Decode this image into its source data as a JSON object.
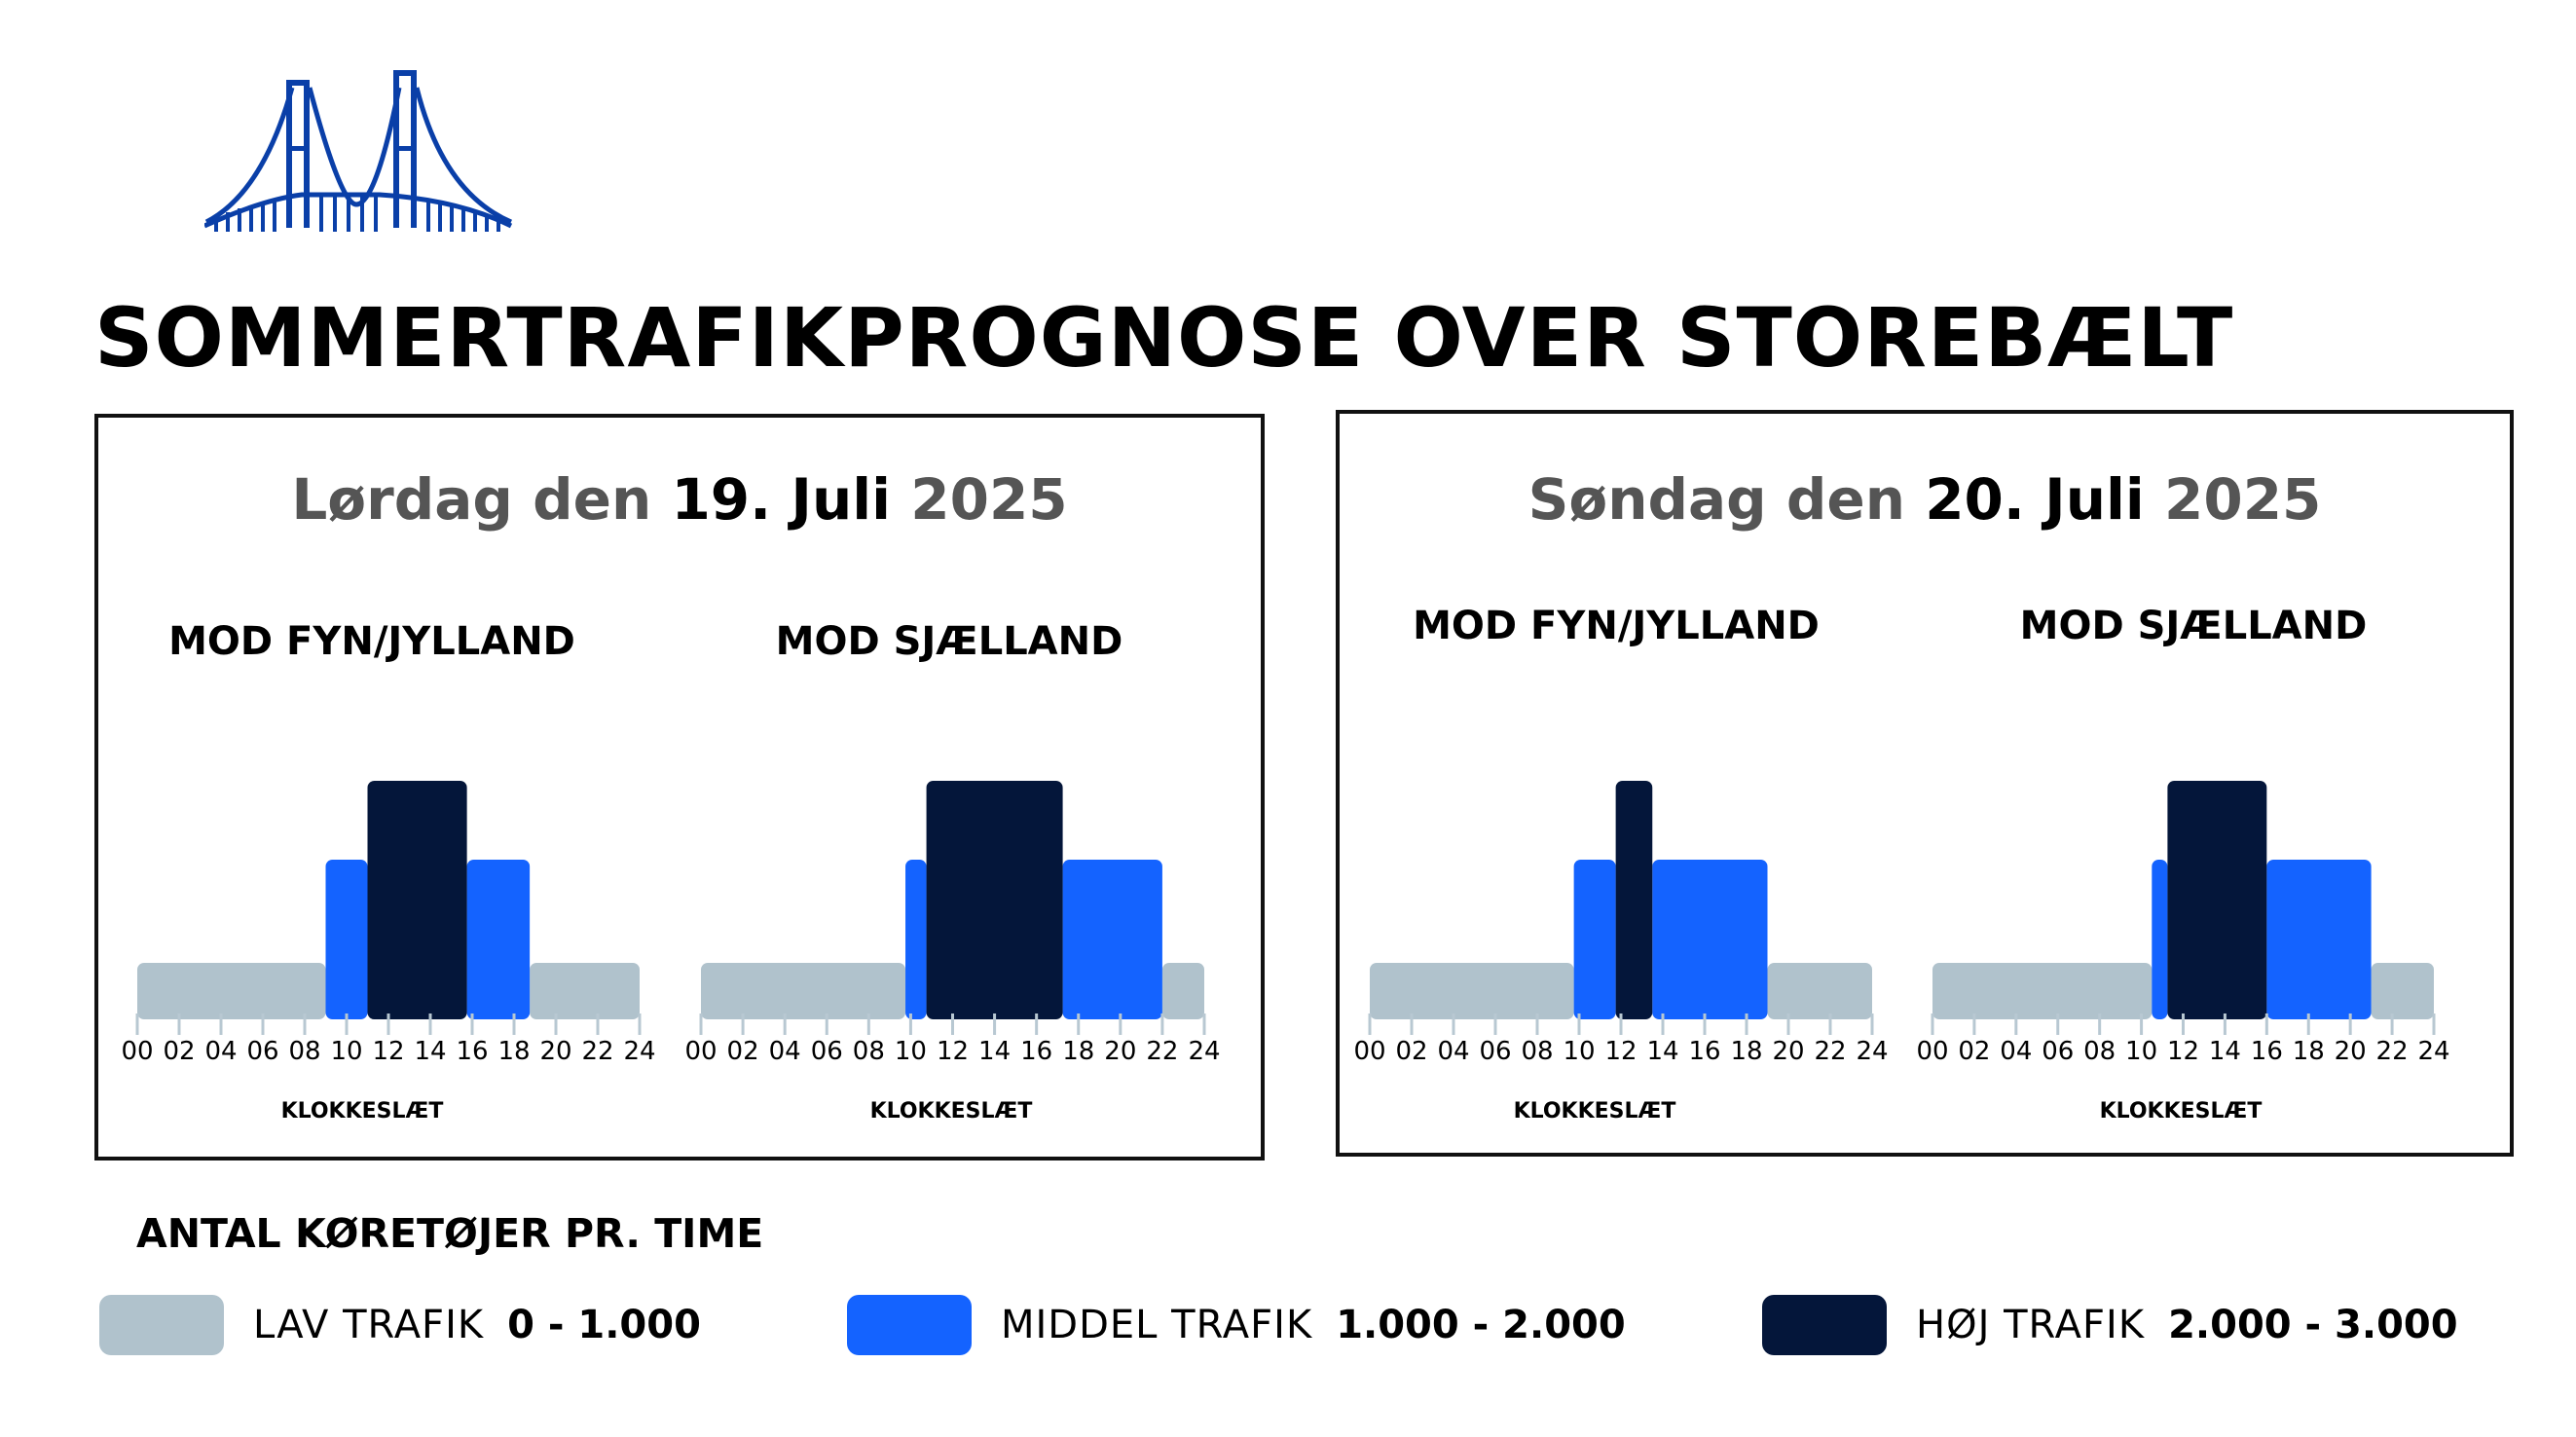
{
  "title": "SOMMERTRAFIKPROGNOSE OVER STOREBÆLT",
  "colors": {
    "low": "#B0C2CC",
    "mid": "#1463FF",
    "high": "#04163A",
    "tick": "#B8C8D2"
  },
  "panels": [
    {
      "day": "Lørdag den",
      "date": "19. Juli",
      "year": "2025"
    },
    {
      "day": "Søndag den",
      "date": "20. Juli",
      "year": "2025"
    }
  ],
  "chart_data": [
    {
      "type": "bar",
      "title": "MOD FYN/JYLLAND",
      "day": "Lørdag den 19. Juli 2025",
      "xlabel": "KLOKKESLÆT",
      "x_ticks": [
        "00",
        "02",
        "04",
        "06",
        "08",
        "10",
        "12",
        "14",
        "16",
        "18",
        "20",
        "22",
        "24"
      ],
      "xlim": [
        0,
        24
      ],
      "ylim": [
        0,
        3000
      ],
      "unit": "ANTAL KØRETØJER PR. TIME",
      "segments": [
        {
          "start": 0,
          "end": 9,
          "level": "low",
          "value": 1000
        },
        {
          "start": 9,
          "end": 11,
          "level": "mid",
          "value": 2000
        },
        {
          "start": 11,
          "end": 15.75,
          "level": "high",
          "value": 3000
        },
        {
          "start": 15.75,
          "end": 18.75,
          "level": "mid",
          "value": 2000
        },
        {
          "start": 18.75,
          "end": 24,
          "level": "low",
          "value": 1000
        }
      ]
    },
    {
      "type": "bar",
      "title": "MOD SJÆLLAND",
      "day": "Lørdag den 19. Juli 2025",
      "xlabel": "KLOKKESLÆT",
      "x_ticks": [
        "00",
        "02",
        "04",
        "06",
        "08",
        "10",
        "12",
        "14",
        "16",
        "18",
        "20",
        "22",
        "24"
      ],
      "xlim": [
        0,
        24
      ],
      "ylim": [
        0,
        3000
      ],
      "unit": "ANTAL KØRETØJER PR. TIME",
      "segments": [
        {
          "start": 0,
          "end": 9.75,
          "level": "low",
          "value": 1000
        },
        {
          "start": 9.75,
          "end": 10.75,
          "level": "mid",
          "value": 2000
        },
        {
          "start": 10.75,
          "end": 17.25,
          "level": "high",
          "value": 3000
        },
        {
          "start": 17.25,
          "end": 22,
          "level": "mid",
          "value": 2000
        },
        {
          "start": 22,
          "end": 24,
          "level": "low",
          "value": 1000
        }
      ]
    },
    {
      "type": "bar",
      "title": "MOD FYN/JYLLAND",
      "day": "Søndag den 20. Juli 2025",
      "xlabel": "KLOKKESLÆT",
      "x_ticks": [
        "00",
        "02",
        "04",
        "06",
        "08",
        "10",
        "12",
        "14",
        "16",
        "18",
        "20",
        "22",
        "24"
      ],
      "xlim": [
        0,
        24
      ],
      "ylim": [
        0,
        3000
      ],
      "unit": "ANTAL KØRETØJER PR. TIME",
      "segments": [
        {
          "start": 0,
          "end": 9.75,
          "level": "low",
          "value": 1000
        },
        {
          "start": 9.75,
          "end": 11.75,
          "level": "mid",
          "value": 2000
        },
        {
          "start": 11.75,
          "end": 13.5,
          "level": "high",
          "value": 3000
        },
        {
          "start": 13.5,
          "end": 19,
          "level": "mid",
          "value": 2000
        },
        {
          "start": 19,
          "end": 24,
          "level": "low",
          "value": 1000
        }
      ]
    },
    {
      "type": "bar",
      "title": "MOD SJÆLLAND",
      "day": "Søndag den 20. Juli 2025",
      "xlabel": "KLOKKESLÆT",
      "x_ticks": [
        "00",
        "02",
        "04",
        "06",
        "08",
        "10",
        "12",
        "14",
        "16",
        "18",
        "20",
        "22",
        "24"
      ],
      "xlim": [
        0,
        24
      ],
      "ylim": [
        0,
        3000
      ],
      "unit": "ANTAL KØRETØJER PR. TIME",
      "segments": [
        {
          "start": 0,
          "end": 10.5,
          "level": "low",
          "value": 1000
        },
        {
          "start": 10.5,
          "end": 11.25,
          "level": "mid",
          "value": 2000
        },
        {
          "start": 11.25,
          "end": 16,
          "level": "high",
          "value": 3000
        },
        {
          "start": 16,
          "end": 21,
          "level": "mid",
          "value": 2000
        },
        {
          "start": 21,
          "end": 24,
          "level": "low",
          "value": 1000
        }
      ]
    }
  ],
  "legend": {
    "title": "ANTAL KØRETØJER PR. TIME",
    "items": [
      {
        "level": "low",
        "label": "LAV TRAFIK",
        "range": "0 - 1.000"
      },
      {
        "level": "mid",
        "label": "MIDDEL TRAFIK",
        "range": "1.000 - 2.000"
      },
      {
        "level": "high",
        "label": "HØJ TRAFIK",
        "range": "2.000 - 3.000"
      }
    ]
  }
}
